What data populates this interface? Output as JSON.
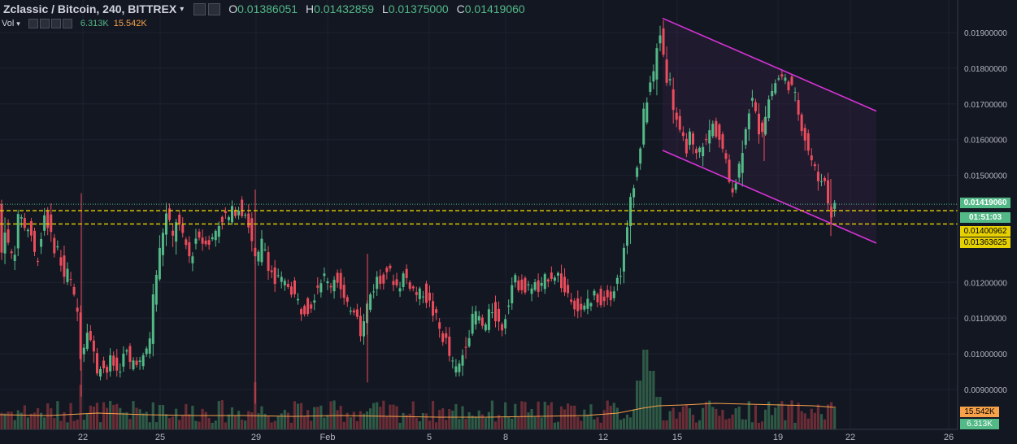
{
  "header": {
    "symbol": "Zclassic / Bitcoin, 240, BITTREX",
    "caret": "▾",
    "o_label": "O",
    "o_value": "0.01386051",
    "h_label": "H",
    "h_value": "0.01432859",
    "l_label": "L",
    "l_value": "0.01375000",
    "c_label": "C",
    "c_value": "0.01419060"
  },
  "volume_header": {
    "label": "Vol",
    "caret": "▾",
    "v1": "6.313K",
    "v2": "15.542K"
  },
  "colors": {
    "background": "#131722",
    "up": "#53b987",
    "down": "#eb4d5c",
    "vol_up": "#2e5a46",
    "vol_down": "#6a2d36",
    "ma": "#f7a24a",
    "channel": "#d633d6",
    "level": "#e6d000",
    "price_line": "#53b987",
    "grid": "#1e2230"
  },
  "price_labels": [
    "0.01900000",
    "0.01800000",
    "0.01700000",
    "0.01600000",
    "0.01500000",
    "0.01200000",
    "0.01100000",
    "0.01000000",
    "0.00900000"
  ],
  "x_labels": [
    "22",
    "25",
    "29",
    "Feb",
    "5",
    "8",
    "12",
    "15",
    "19",
    "22",
    "26"
  ],
  "markers": {
    "last_price": "0.01419060",
    "countdown": "01:51:03",
    "level_upper": "0.01400962",
    "level_lower": "0.01363625",
    "vol_ma": "15.542K",
    "vol_last": "6.313K"
  },
  "chart_data": {
    "type": "candlestick",
    "title": "Zclassic / Bitcoin, 240, BITTREX",
    "ylim": [
      0.0085,
      0.0196
    ],
    "y_ticks": [
      0.019,
      0.018,
      0.017,
      0.016,
      0.015,
      0.012,
      0.011,
      0.01,
      0.009
    ],
    "x_axis": [
      "22",
      "25",
      "29",
      "Feb",
      "5",
      "8",
      "12",
      "15",
      "19",
      "22",
      "26"
    ],
    "levels": [
      0.01400962,
      0.01363625
    ],
    "last_price": 0.0141906,
    "channel": {
      "upper": [
        [
          "14",
          0.0194
        ],
        [
          "22",
          0.0168
        ]
      ],
      "lower": [
        [
          "14",
          0.0157
        ],
        [
          "22",
          0.0131
        ]
      ]
    },
    "path_points": [
      [
        0,
        0.0124
      ],
      [
        4,
        0.0128
      ],
      [
        7,
        0.0138
      ],
      [
        10,
        0.0132
      ],
      [
        14,
        0.0128
      ],
      [
        18,
        0.0127
      ],
      [
        22,
        0.0132
      ],
      [
        26,
        0.0141
      ],
      [
        30,
        0.0138
      ],
      [
        34,
        0.0133
      ],
      [
        38,
        0.0137
      ],
      [
        42,
        0.0131
      ],
      [
        46,
        0.0126
      ],
      [
        50,
        0.0129
      ],
      [
        54,
        0.0135
      ],
      [
        58,
        0.0141
      ],
      [
        62,
        0.0135
      ],
      [
        66,
        0.0131
      ],
      [
        70,
        0.013
      ],
      [
        74,
        0.0129
      ],
      [
        78,
        0.0124
      ],
      [
        82,
        0.0121
      ],
      [
        86,
        0.0123
      ],
      [
        90,
        0.0119
      ],
      [
        94,
        0.0114
      ],
      [
        98,
        0.0111
      ],
      [
        102,
        0.0098
      ],
      [
        106,
        0.0104
      ],
      [
        110,
        0.0109
      ],
      [
        114,
        0.0103
      ],
      [
        118,
        0.0099
      ],
      [
        122,
        0.0095
      ],
      [
        126,
        0.0098
      ],
      [
        130,
        0.0096
      ],
      [
        134,
        0.0095
      ],
      [
        138,
        0.0098
      ],
      [
        142,
        0.0097
      ],
      [
        146,
        0.0095
      ],
      [
        150,
        0.0097
      ],
      [
        154,
        0.0099
      ],
      [
        158,
        0.01
      ],
      [
        162,
        0.0097
      ],
      [
        166,
        0.0098
      ],
      [
        170,
        0.0099
      ],
      [
        174,
        0.0097
      ],
      [
        178,
        0.0098
      ],
      [
        182,
        0.0101
      ],
      [
        186,
        0.0104
      ],
      [
        190,
        0.0115
      ],
      [
        194,
        0.0122
      ],
      [
        198,
        0.0128
      ],
      [
        202,
        0.0134
      ],
      [
        206,
        0.0139
      ],
      [
        210,
        0.0137
      ],
      [
        214,
        0.0131
      ],
      [
        218,
        0.0138
      ],
      [
        222,
        0.0136
      ],
      [
        226,
        0.0132
      ],
      [
        230,
        0.0131
      ],
      [
        234,
        0.0127
      ],
      [
        238,
        0.0128
      ],
      [
        242,
        0.0132
      ],
      [
        246,
        0.0134
      ],
      [
        250,
        0.0131
      ],
      [
        254,
        0.0133
      ],
      [
        258,
        0.0132
      ],
      [
        262,
        0.0131
      ],
      [
        266,
        0.0134
      ],
      [
        270,
        0.0136
      ],
      [
        274,
        0.0138
      ],
      [
        278,
        0.0139
      ],
      [
        282,
        0.0137
      ],
      [
        286,
        0.0139
      ],
      [
        290,
        0.014
      ],
      [
        294,
        0.0142
      ],
      [
        298,
        0.014
      ],
      [
        302,
        0.0141
      ],
      [
        306,
        0.0138
      ],
      [
        310,
        0.0134
      ],
      [
        314,
        0.0127
      ],
      [
        318,
        0.0125
      ],
      [
        322,
        0.0129
      ],
      [
        326,
        0.0133
      ],
      [
        330,
        0.0126
      ],
      [
        334,
        0.0125
      ],
      [
        338,
        0.0121
      ],
      [
        342,
        0.0119
      ],
      [
        346,
        0.0122
      ],
      [
        350,
        0.0118
      ],
      [
        354,
        0.012
      ],
      [
        358,
        0.0119
      ],
      [
        362,
        0.0118
      ],
      [
        366,
        0.0115
      ],
      [
        370,
        0.0114
      ],
      [
        374,
        0.0112
      ],
      [
        378,
        0.0114
      ],
      [
        382,
        0.0113
      ],
      [
        386,
        0.0115
      ],
      [
        390,
        0.0118
      ],
      [
        394,
        0.012
      ],
      [
        398,
        0.0122
      ],
      [
        402,
        0.0121
      ],
      [
        406,
        0.0119
      ],
      [
        410,
        0.012
      ],
      [
        414,
        0.0122
      ],
      [
        418,
        0.0121
      ],
      [
        422,
        0.0117
      ],
      [
        426,
        0.0114
      ],
      [
        430,
        0.0112
      ],
      [
        434,
        0.0114
      ],
      [
        438,
        0.0113
      ],
      [
        442,
        0.0112
      ],
      [
        446,
        0.0106
      ],
      [
        450,
        0.0109
      ],
      [
        454,
        0.0114
      ],
      [
        458,
        0.0117
      ],
      [
        462,
        0.0119
      ],
      [
        466,
        0.0121
      ],
      [
        470,
        0.012
      ],
      [
        474,
        0.0122
      ],
      [
        478,
        0.0124
      ],
      [
        482,
        0.0122
      ],
      [
        486,
        0.0121
      ],
      [
        490,
        0.0119
      ],
      [
        494,
        0.012
      ],
      [
        498,
        0.0122
      ],
      [
        502,
        0.0121
      ],
      [
        506,
        0.012
      ],
      [
        510,
        0.0118
      ],
      [
        514,
        0.0117
      ],
      [
        518,
        0.0116
      ],
      [
        522,
        0.0118
      ],
      [
        526,
        0.0116
      ],
      [
        530,
        0.0114
      ],
      [
        534,
        0.0112
      ],
      [
        538,
        0.011
      ],
      [
        542,
        0.0107
      ],
      [
        546,
        0.0105
      ],
      [
        550,
        0.0104
      ],
      [
        554,
        0.01
      ],
      [
        558,
        0.0097
      ],
      [
        562,
        0.0095
      ],
      [
        566,
        0.0096
      ],
      [
        570,
        0.0099
      ],
      [
        574,
        0.0103
      ],
      [
        578,
        0.0106
      ],
      [
        582,
        0.0108
      ],
      [
        586,
        0.0112
      ],
      [
        590,
        0.011
      ],
      [
        594,
        0.0108
      ],
      [
        598,
        0.0107
      ],
      [
        602,
        0.0109
      ],
      [
        606,
        0.0113
      ],
      [
        610,
        0.0112
      ],
      [
        614,
        0.0109
      ],
      [
        618,
        0.0107
      ],
      [
        622,
        0.0109
      ],
      [
        626,
        0.0114
      ],
      [
        630,
        0.0118
      ],
      [
        634,
        0.0121
      ],
      [
        638,
        0.0119
      ],
      [
        642,
        0.0121
      ],
      [
        646,
        0.0118
      ],
      [
        650,
        0.0117
      ],
      [
        654,
        0.0119
      ],
      [
        658,
        0.012
      ],
      [
        662,
        0.0118
      ],
      [
        666,
        0.0117
      ],
      [
        670,
        0.0119
      ],
      [
        674,
        0.0121
      ],
      [
        678,
        0.0123
      ],
      [
        682,
        0.0122
      ],
      [
        686,
        0.0123
      ],
      [
        690,
        0.0121
      ],
      [
        694,
        0.0119
      ],
      [
        698,
        0.0116
      ],
      [
        702,
        0.0118
      ],
      [
        706,
        0.0116
      ],
      [
        710,
        0.0114
      ],
      [
        714,
        0.0112
      ],
      [
        718,
        0.0111
      ],
      [
        722,
        0.0113
      ],
      [
        726,
        0.0116
      ],
      [
        730,
        0.0114
      ],
      [
        734,
        0.0117
      ],
      [
        738,
        0.0116
      ],
      [
        742,
        0.0115
      ],
      [
        746,
        0.0116
      ],
      [
        750,
        0.0118
      ],
      [
        754,
        0.0117
      ],
      [
        758,
        0.0119
      ],
      [
        762,
        0.0121
      ],
      [
        766,
        0.0124
      ],
      [
        770,
        0.0129
      ],
      [
        774,
        0.0135
      ],
      [
        778,
        0.0145
      ],
      [
        782,
        0.0149
      ],
      [
        786,
        0.0152
      ],
      [
        790,
        0.0159
      ],
      [
        794,
        0.0167
      ],
      [
        798,
        0.0172
      ],
      [
        802,
        0.0176
      ],
      [
        806,
        0.0178
      ],
      [
        810,
        0.0185
      ],
      [
        814,
        0.019
      ],
      [
        818,
        0.0184
      ],
      [
        822,
        0.0178
      ],
      [
        826,
        0.0176
      ],
      [
        830,
        0.017
      ],
      [
        834,
        0.0166
      ],
      [
        838,
        0.0161
      ],
      [
        842,
        0.0159
      ],
      [
        846,
        0.0158
      ],
      [
        850,
        0.0161
      ],
      [
        854,
        0.0157
      ],
      [
        858,
        0.0155
      ],
      [
        862,
        0.0156
      ],
      [
        866,
        0.016
      ],
      [
        870,
        0.0158
      ],
      [
        874,
        0.0162
      ],
      [
        878,
        0.0164
      ],
      [
        882,
        0.0163
      ],
      [
        886,
        0.0161
      ],
      [
        890,
        0.0158
      ],
      [
        894,
        0.0154
      ],
      [
        898,
        0.0149
      ],
      [
        902,
        0.0147
      ],
      [
        906,
        0.0148
      ],
      [
        910,
        0.0151
      ],
      [
        914,
        0.0156
      ],
      [
        918,
        0.0163
      ],
      [
        922,
        0.0167
      ],
      [
        926,
        0.0172
      ],
      [
        930,
        0.0168
      ],
      [
        934,
        0.0164
      ],
      [
        938,
        0.0162
      ],
      [
        942,
        0.0166
      ],
      [
        946,
        0.017
      ],
      [
        950,
        0.0173
      ],
      [
        954,
        0.0175
      ],
      [
        958,
        0.0177
      ],
      [
        962,
        0.0178
      ],
      [
        966,
        0.0176
      ],
      [
        970,
        0.0177
      ],
      [
        974,
        0.0175
      ],
      [
        978,
        0.0173
      ],
      [
        982,
        0.017
      ],
      [
        986,
        0.0166
      ],
      [
        990,
        0.0163
      ],
      [
        994,
        0.0159
      ],
      [
        998,
        0.0156
      ],
      [
        1002,
        0.0153
      ],
      [
        1006,
        0.015
      ],
      [
        1010,
        0.0148
      ],
      [
        1014,
        0.0151
      ],
      [
        1018,
        0.0146
      ],
      [
        1022,
        0.0141
      ],
      [
        1026,
        0.0139
      ],
      [
        1030,
        0.0142
      ]
    ],
    "volume_spikes": [
      [
        100,
        0.55
      ],
      [
        314,
        0.58
      ],
      [
        452,
        0.22
      ],
      [
        786,
        0.6
      ],
      [
        794,
        0.98
      ],
      [
        802,
        0.72
      ],
      [
        810,
        0.4
      ],
      [
        554,
        0.25
      ],
      [
        198,
        0.3
      ]
    ],
    "volume_ma_points": [
      [
        0,
        0.18
      ],
      [
        60,
        0.17
      ],
      [
        120,
        0.2
      ],
      [
        180,
        0.18
      ],
      [
        240,
        0.17
      ],
      [
        300,
        0.17
      ],
      [
        360,
        0.16
      ],
      [
        420,
        0.17
      ],
      [
        480,
        0.16
      ],
      [
        540,
        0.15
      ],
      [
        600,
        0.15
      ],
      [
        660,
        0.16
      ],
      [
        720,
        0.17
      ],
      [
        760,
        0.2
      ],
      [
        790,
        0.26
      ],
      [
        810,
        0.29
      ],
      [
        840,
        0.3
      ],
      [
        880,
        0.32
      ],
      [
        920,
        0.31
      ],
      [
        960,
        0.3
      ],
      [
        1000,
        0.29
      ],
      [
        1028,
        0.27
      ]
    ]
  }
}
